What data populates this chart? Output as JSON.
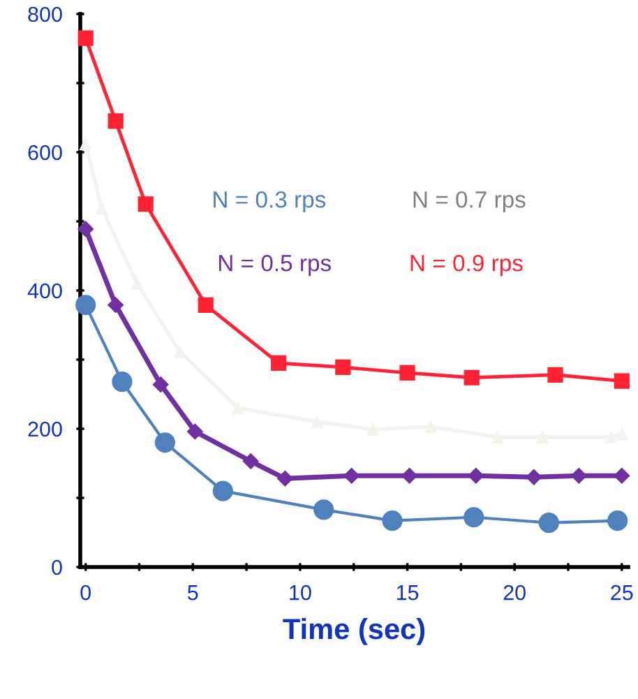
{
  "chart_data": {
    "type": "line",
    "xlabel": "Time (sec)",
    "xlim": [
      -0.25,
      25.3
    ],
    "ylim": [
      0,
      800
    ],
    "xticks": [
      0,
      {
        "value": 2.5,
        "label": null
      },
      5,
      {
        "value": 7.5,
        "label": null
      },
      10,
      {
        "value": 12.5,
        "label": null
      },
      15,
      {
        "value": 17.5,
        "label": null
      },
      20,
      {
        "value": 22.5,
        "label": null
      },
      25
    ],
    "yticks": [
      0,
      {
        "value": 100,
        "label": null
      },
      200,
      {
        "value": 300,
        "label": null
      },
      400,
      {
        "value": 500,
        "label": null
      },
      600,
      {
        "value": 700,
        "label": null
      },
      800
    ],
    "grid": false,
    "legend": false,
    "annotations": [
      "N = 0.7 rps"
    ],
    "series": [
      {
        "name": "N = 0.3 rps",
        "color": "#4f81bd",
        "marker": "circle",
        "x": [
          0,
          1.7,
          3.7,
          6.4,
          11.1,
          14.3,
          18.1,
          21.6,
          24.8
        ],
        "values": [
          379,
          268,
          180,
          110,
          83,
          67,
          72,
          64,
          67
        ]
      },
      {
        "name": "N = 0.5 rps",
        "color": "#7030a0",
        "marker": "diamond",
        "x": [
          0,
          1.4,
          3.5,
          5.1,
          7.7,
          9.3,
          12.4,
          15.1,
          18.2,
          20.9,
          23,
          25
        ],
        "values": [
          489,
          379,
          264,
          196,
          153,
          128,
          132,
          132,
          132,
          130,
          132,
          132
        ]
      },
      {
        "color": "#f2f3ee",
        "marker": "triangle",
        "x": [
          0,
          0.75,
          2.4,
          4.4,
          7.1,
          10.8,
          13.4,
          16.1,
          19.2,
          21.3,
          24.5,
          25
        ],
        "values": [
          612,
          519,
          410,
          311,
          230,
          210,
          199,
          203,
          188,
          188,
          188,
          192
        ]
      },
      {
        "name": "N = 0.9 rps",
        "color": "#ff2233",
        "marker": "square",
        "x": [
          0,
          1.4,
          2.8,
          5.6,
          9.0,
          12.0,
          15.0,
          18.0,
          21.9,
          25
        ],
        "values": [
          765,
          645,
          525,
          379,
          295,
          289,
          281,
          274,
          278,
          269
        ]
      }
    ]
  }
}
